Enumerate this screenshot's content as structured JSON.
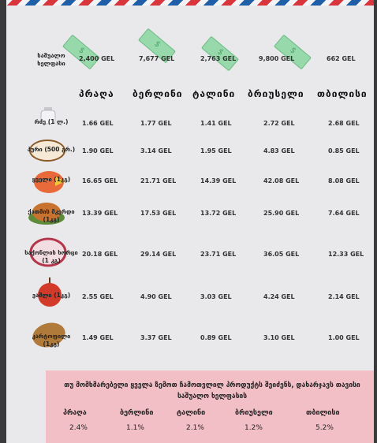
{
  "salary_label": "საშუალო ხელფასი",
  "cities": [
    "პრაღა",
    "ბერლინი",
    "ტალინი",
    "ბრიუსელი",
    "თბილისი"
  ],
  "salaries": [
    "2,400 GEL",
    "7,677 GEL",
    "2,763 GEL",
    "9,800 GEL",
    "662 GEL"
  ],
  "products": [
    {
      "label": "რძე (1 ლ.)",
      "values": [
        "1.66 GEL",
        "1.77 GEL",
        "1.41 GEL",
        "2.72 GEL",
        "2.68 GEL"
      ],
      "icon": "milk-icon"
    },
    {
      "label": "პური (500 გრ.)",
      "values": [
        "1.90 GEL",
        "3.14 GEL",
        "1.95 GEL",
        "4.83 GEL",
        "0.85 GEL"
      ],
      "icon": "bread-icon"
    },
    {
      "label": "ყველი (1კგ)",
      "values": [
        "16.65 GEL",
        "21.71 GEL",
        "14.39 GEL",
        "42.08 GEL",
        "8.08 GEL"
      ],
      "icon": "cheese-icon"
    },
    {
      "label": "ქათმის მკერდი (1კგ)",
      "values": [
        "13.39 GEL",
        "17.53 GEL",
        "13.72 GEL",
        "25.90 GEL",
        "7.64 GEL"
      ],
      "icon": "chicken-icon"
    },
    {
      "label": "საქონლის ხორცი (1 კგ)",
      "values": [
        "20.18 GEL",
        "29.14 GEL",
        "23.71 GEL",
        "36.05 GEL",
        "12.33 GEL"
      ],
      "icon": "beef-icon"
    },
    {
      "label": "ვაშლი (1კგ)",
      "values": [
        "2.55 GEL",
        "4.90 GEL",
        "3.03 GEL",
        "4.24 GEL",
        "2.14 GEL"
      ],
      "icon": "apple-icon"
    },
    {
      "label": "კარტოფილი (1კგ)",
      "values": [
        "1.49 GEL",
        "3.37 GEL",
        "0.89 GEL",
        "3.10 GEL",
        "1.00 GEL"
      ],
      "icon": "potato-icon"
    }
  ],
  "summary": {
    "text": "თუ მომხმარებელი ყველა ზემოთ ჩამოთვლილ პროდუქტს შეიძენს, დახარჯავს თავისი საშუალო ხელფასის",
    "cities": [
      "პრაღა",
      "ბერლინი",
      "ტალინი",
      "ბრიუსელი",
      "თბილისი"
    ],
    "percents": [
      "2.4%",
      "1.1%",
      "2.1%",
      "1.2%",
      "5.2%"
    ]
  },
  "colors": {
    "stripe_red": "#d9353d",
    "stripe_blue": "#1f5fa8",
    "summary_bg": "#f3bfc7",
    "money_green": "#8fd8a3"
  }
}
